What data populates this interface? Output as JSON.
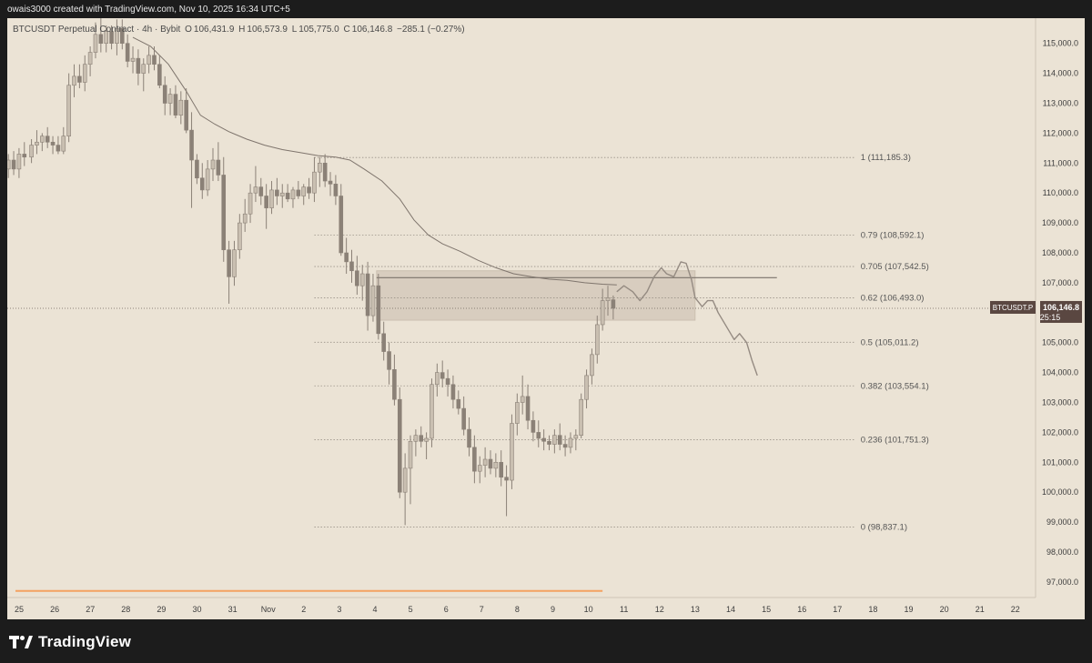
{
  "header": {
    "attribution": "owais3000 created with TradingView.com, Nov 10, 2025 16:34 UTC+5"
  },
  "symbol": {
    "name": "BTCUSDT Perpetual Contract · 4h · Bybit",
    "open_label": "O",
    "open": "106,431.9",
    "high_label": "H",
    "high": "106,573.9",
    "low_label": "L",
    "low": "105,775.0",
    "close_label": "C",
    "close": "106,146.8",
    "change": "−285.1 (−0.27%)"
  },
  "price_tag": {
    "symbol": "BTCUSDT.P",
    "price": "106,146.8",
    "countdown": "25:15",
    "bg_color": "#5a4741"
  },
  "footer": {
    "brand": "TradingView"
  },
  "colors": {
    "background": "#ebe3d5",
    "candle": "#8b8177",
    "candle_light": "#c9bfb1",
    "ma_line": "#7f756d",
    "fib_line": "#9a9288",
    "zone_fill": "#d8cdbf",
    "orange_line": "#f4a261"
  },
  "chart_data": {
    "type": "candlestick",
    "y_axis_ticks": [
      "115,000.0",
      "114,000.0",
      "113,000.0",
      "112,000.0",
      "111,000.0",
      "110,000.0",
      "109,000.0",
      "108,000.0",
      "107,000.0",
      "106,000.0",
      "105,000.0",
      "104,000.0",
      "103,000.0",
      "102,000.0",
      "101,000.0",
      "100,000.0",
      "99,000.0",
      "98,000.0",
      "97,000.0"
    ],
    "y_axis_values": [
      115000,
      114000,
      113000,
      112000,
      111000,
      110000,
      109000,
      108000,
      107000,
      106000,
      105000,
      104000,
      103000,
      102000,
      101000,
      100000,
      99000,
      98000,
      97000
    ],
    "x_axis_labels": [
      "25",
      "26",
      "27",
      "28",
      "29",
      "30",
      "31",
      "Nov",
      "2",
      "3",
      "4",
      "5",
      "6",
      "7",
      "8",
      "9",
      "10",
      "11",
      "12",
      "13",
      "14",
      "15",
      "16",
      "17",
      "18",
      "19",
      "20",
      "21",
      "22"
    ],
    "x_axis_day_index": [
      0,
      1,
      2,
      3,
      4,
      5,
      6,
      7,
      8,
      9,
      10,
      11,
      12,
      13,
      14,
      15,
      16,
      17,
      18,
      19,
      20,
      21,
      22,
      23,
      24,
      25,
      26,
      27,
      28
    ],
    "fib_levels": [
      {
        "ratio": "1",
        "value": 111185.3,
        "label": "1 (111,185.3)"
      },
      {
        "ratio": "0.79",
        "value": 108592.1,
        "label": "0.79 (108,592.1)"
      },
      {
        "ratio": "0.705",
        "value": 107542.5,
        "label": "0.705 (107,542.5)"
      },
      {
        "ratio": "0.62",
        "value": 106493.0,
        "label": "0.62 (106,493.0)"
      },
      {
        "ratio": "0.5",
        "value": 105011.2,
        "label": "0.5 (105,011.2)"
      },
      {
        "ratio": "0.382",
        "value": 103554.1,
        "label": "0.382 (103,554.1)"
      },
      {
        "ratio": "0.236",
        "value": 101751.3,
        "label": "0.236 (101,751.3)"
      },
      {
        "ratio": "0",
        "value": 98837.1,
        "label": "0 (98,837.1)"
      }
    ],
    "fib_start_day": 8.4,
    "fib_end_day": 23.6,
    "zone": {
      "day_start": 10.15,
      "day_end": 19.1,
      "high": 107400,
      "low": 105750
    },
    "horizontal_line": {
      "day_start": 10.15,
      "day_end": 21.4,
      "value": 107170
    },
    "current_price": 106146.8,
    "candles": [
      {
        "d": -0.2,
        "o": 110800,
        "h": 111300,
        "l": 110500,
        "c": 111100
      },
      {
        "d": -0.05,
        "o": 111100,
        "h": 111400,
        "l": 110600,
        "c": 110800
      },
      {
        "d": 0.1,
        "o": 110800,
        "h": 111500,
        "l": 110500,
        "c": 111300
      },
      {
        "d": 0.25,
        "o": 111300,
        "h": 111700,
        "l": 110900,
        "c": 111200
      },
      {
        "d": 0.45,
        "o": 111200,
        "h": 111800,
        "l": 111000,
        "c": 111600
      },
      {
        "d": 0.6,
        "o": 111600,
        "h": 112100,
        "l": 111300,
        "c": 111700
      },
      {
        "d": 0.75,
        "o": 111700,
        "h": 112000,
        "l": 111400,
        "c": 111900
      },
      {
        "d": 0.9,
        "o": 111900,
        "h": 112200,
        "l": 111500,
        "c": 111700
      },
      {
        "d": 1.05,
        "o": 111700,
        "h": 111900,
        "l": 111300,
        "c": 111600
      },
      {
        "d": 1.2,
        "o": 111600,
        "h": 111900,
        "l": 111300,
        "c": 111400
      },
      {
        "d": 1.35,
        "o": 111400,
        "h": 112200,
        "l": 111300,
        "c": 111900
      },
      {
        "d": 1.5,
        "o": 111900,
        "h": 114000,
        "l": 111700,
        "c": 113600
      },
      {
        "d": 1.65,
        "o": 113600,
        "h": 114300,
        "l": 113200,
        "c": 113900
      },
      {
        "d": 1.8,
        "o": 113900,
        "h": 114300,
        "l": 113500,
        "c": 113700
      },
      {
        "d": 1.95,
        "o": 113700,
        "h": 114600,
        "l": 113400,
        "c": 114300
      },
      {
        "d": 2.1,
        "o": 114300,
        "h": 114900,
        "l": 113900,
        "c": 114700
      },
      {
        "d": 2.25,
        "o": 114700,
        "h": 115700,
        "l": 114500,
        "c": 115300
      },
      {
        "d": 2.4,
        "o": 115300,
        "h": 115900,
        "l": 114700,
        "c": 115000
      },
      {
        "d": 2.55,
        "o": 115000,
        "h": 115600,
        "l": 114700,
        "c": 115400
      },
      {
        "d": 2.7,
        "o": 115400,
        "h": 115600,
        "l": 114800,
        "c": 115000
      },
      {
        "d": 2.85,
        "o": 115000,
        "h": 115800,
        "l": 114600,
        "c": 115500
      },
      {
        "d": 3.0,
        "o": 115500,
        "h": 115800,
        "l": 114800,
        "c": 115000
      },
      {
        "d": 3.15,
        "o": 115000,
        "h": 115300,
        "l": 114200,
        "c": 114400
      },
      {
        "d": 3.3,
        "o": 114400,
        "h": 114900,
        "l": 114000,
        "c": 114500
      },
      {
        "d": 3.45,
        "o": 114500,
        "h": 114800,
        "l": 113600,
        "c": 114000
      },
      {
        "d": 3.6,
        "o": 114000,
        "h": 114500,
        "l": 113400,
        "c": 114300
      },
      {
        "d": 3.75,
        "o": 114300,
        "h": 114900,
        "l": 114000,
        "c": 114600
      },
      {
        "d": 3.9,
        "o": 114600,
        "h": 114900,
        "l": 114100,
        "c": 114300
      },
      {
        "d": 4.05,
        "o": 114300,
        "h": 114600,
        "l": 113500,
        "c": 113600
      },
      {
        "d": 4.2,
        "o": 113600,
        "h": 113900,
        "l": 112600,
        "c": 113000
      },
      {
        "d": 4.35,
        "o": 113000,
        "h": 113500,
        "l": 112600,
        "c": 113300
      },
      {
        "d": 4.5,
        "o": 113300,
        "h": 113600,
        "l": 112500,
        "c": 112600
      },
      {
        "d": 4.65,
        "o": 112600,
        "h": 113400,
        "l": 112300,
        "c": 113100
      },
      {
        "d": 4.8,
        "o": 113100,
        "h": 113500,
        "l": 112000,
        "c": 112100
      },
      {
        "d": 4.95,
        "o": 112100,
        "h": 112700,
        "l": 109500,
        "c": 111100
      },
      {
        "d": 5.1,
        "o": 111100,
        "h": 111300,
        "l": 110300,
        "c": 110500
      },
      {
        "d": 5.25,
        "o": 110500,
        "h": 111000,
        "l": 109800,
        "c": 110100
      },
      {
        "d": 5.4,
        "o": 110100,
        "h": 111100,
        "l": 109900,
        "c": 110800
      },
      {
        "d": 5.55,
        "o": 110800,
        "h": 111500,
        "l": 110400,
        "c": 111100
      },
      {
        "d": 5.7,
        "o": 111100,
        "h": 111700,
        "l": 110400,
        "c": 110600
      },
      {
        "d": 5.85,
        "o": 110600,
        "h": 111200,
        "l": 107700,
        "c": 108100
      },
      {
        "d": 6.0,
        "o": 108100,
        "h": 108400,
        "l": 106300,
        "c": 107200
      },
      {
        "d": 6.15,
        "o": 107200,
        "h": 108400,
        "l": 106900,
        "c": 108100
      },
      {
        "d": 6.3,
        "o": 108100,
        "h": 109300,
        "l": 107800,
        "c": 109000
      },
      {
        "d": 6.45,
        "o": 109000,
        "h": 109800,
        "l": 108700,
        "c": 109300
      },
      {
        "d": 6.6,
        "o": 109300,
        "h": 110300,
        "l": 109000,
        "c": 110000
      },
      {
        "d": 6.75,
        "o": 110000,
        "h": 110900,
        "l": 109700,
        "c": 110200
      },
      {
        "d": 6.9,
        "o": 110200,
        "h": 110500,
        "l": 109600,
        "c": 109900
      },
      {
        "d": 7.05,
        "o": 109900,
        "h": 110300,
        "l": 108800,
        "c": 109500
      },
      {
        "d": 7.2,
        "o": 109500,
        "h": 110400,
        "l": 109300,
        "c": 110100
      },
      {
        "d": 7.35,
        "o": 110100,
        "h": 110500,
        "l": 109600,
        "c": 109900
      },
      {
        "d": 7.5,
        "o": 109900,
        "h": 110300,
        "l": 109500,
        "c": 110000
      },
      {
        "d": 7.65,
        "o": 110000,
        "h": 110300,
        "l": 109700,
        "c": 109800
      },
      {
        "d": 7.8,
        "o": 109800,
        "h": 110200,
        "l": 109500,
        "c": 110100
      },
      {
        "d": 7.95,
        "o": 110100,
        "h": 110400,
        "l": 109800,
        "c": 109900
      },
      {
        "d": 8.1,
        "o": 109900,
        "h": 110300,
        "l": 109600,
        "c": 110200
      },
      {
        "d": 8.25,
        "o": 110200,
        "h": 110500,
        "l": 109800,
        "c": 110000
      },
      {
        "d": 8.4,
        "o": 110000,
        "h": 111200,
        "l": 109700,
        "c": 110700
      },
      {
        "d": 8.55,
        "o": 110700,
        "h": 111200,
        "l": 110200,
        "c": 111000
      },
      {
        "d": 8.7,
        "o": 111000,
        "h": 111300,
        "l": 110200,
        "c": 110400
      },
      {
        "d": 8.85,
        "o": 110400,
        "h": 110700,
        "l": 109900,
        "c": 110300
      },
      {
        "d": 9.0,
        "o": 110300,
        "h": 110600,
        "l": 109600,
        "c": 109900
      },
      {
        "d": 9.15,
        "o": 109900,
        "h": 110300,
        "l": 107900,
        "c": 108000
      },
      {
        "d": 9.3,
        "o": 108000,
        "h": 108500,
        "l": 107300,
        "c": 107700
      },
      {
        "d": 9.45,
        "o": 107700,
        "h": 108100,
        "l": 107000,
        "c": 107400
      },
      {
        "d": 9.6,
        "o": 107400,
        "h": 107900,
        "l": 106600,
        "c": 106900
      },
      {
        "d": 9.75,
        "o": 106900,
        "h": 107600,
        "l": 106400,
        "c": 107300
      },
      {
        "d": 9.9,
        "o": 107300,
        "h": 107700,
        "l": 105400,
        "c": 105900
      },
      {
        "d": 10.05,
        "o": 105900,
        "h": 107300,
        "l": 105700,
        "c": 106900
      },
      {
        "d": 10.2,
        "o": 106900,
        "h": 107300,
        "l": 105100,
        "c": 105300
      },
      {
        "d": 10.35,
        "o": 105300,
        "h": 105700,
        "l": 104400,
        "c": 104700
      },
      {
        "d": 10.5,
        "o": 104700,
        "h": 105000,
        "l": 103600,
        "c": 104100
      },
      {
        "d": 10.65,
        "o": 104100,
        "h": 104600,
        "l": 102900,
        "c": 103100
      },
      {
        "d": 10.8,
        "o": 103100,
        "h": 103500,
        "l": 99800,
        "c": 100000
      },
      {
        "d": 10.95,
        "o": 100000,
        "h": 101300,
        "l": 98900,
        "c": 100800
      },
      {
        "d": 11.1,
        "o": 100800,
        "h": 101900,
        "l": 99600,
        "c": 101700
      },
      {
        "d": 11.25,
        "o": 101700,
        "h": 102100,
        "l": 101200,
        "c": 101900
      },
      {
        "d": 11.4,
        "o": 101900,
        "h": 102200,
        "l": 101500,
        "c": 101700
      },
      {
        "d": 11.55,
        "o": 101700,
        "h": 102000,
        "l": 101100,
        "c": 101800
      },
      {
        "d": 11.7,
        "o": 101800,
        "h": 103800,
        "l": 101500,
        "c": 103600
      },
      {
        "d": 11.85,
        "o": 103600,
        "h": 104300,
        "l": 103200,
        "c": 104000
      },
      {
        "d": 12.0,
        "o": 104000,
        "h": 104400,
        "l": 103500,
        "c": 103800
      },
      {
        "d": 12.15,
        "o": 103800,
        "h": 104100,
        "l": 103200,
        "c": 103600
      },
      {
        "d": 12.3,
        "o": 103600,
        "h": 103900,
        "l": 102800,
        "c": 103100
      },
      {
        "d": 12.45,
        "o": 103100,
        "h": 103400,
        "l": 102600,
        "c": 102800
      },
      {
        "d": 12.6,
        "o": 102800,
        "h": 103200,
        "l": 101900,
        "c": 102100
      },
      {
        "d": 12.75,
        "o": 102100,
        "h": 102500,
        "l": 101200,
        "c": 101500
      },
      {
        "d": 12.9,
        "o": 101500,
        "h": 101900,
        "l": 100300,
        "c": 100700
      },
      {
        "d": 13.05,
        "o": 100700,
        "h": 101200,
        "l": 100300,
        "c": 100900
      },
      {
        "d": 13.2,
        "o": 100900,
        "h": 101500,
        "l": 100500,
        "c": 101100
      },
      {
        "d": 13.35,
        "o": 101100,
        "h": 101400,
        "l": 100600,
        "c": 100800
      },
      {
        "d": 13.5,
        "o": 100800,
        "h": 101300,
        "l": 100500,
        "c": 101000
      },
      {
        "d": 13.65,
        "o": 101000,
        "h": 101400,
        "l": 100200,
        "c": 100500
      },
      {
        "d": 13.8,
        "o": 100500,
        "h": 100900,
        "l": 99200,
        "c": 100400
      },
      {
        "d": 13.95,
        "o": 100400,
        "h": 102600,
        "l": 100100,
        "c": 102300
      },
      {
        "d": 14.1,
        "o": 102300,
        "h": 103300,
        "l": 101900,
        "c": 103000
      },
      {
        "d": 14.25,
        "o": 103000,
        "h": 103900,
        "l": 102600,
        "c": 103200
      },
      {
        "d": 14.4,
        "o": 103200,
        "h": 103600,
        "l": 102100,
        "c": 102400
      },
      {
        "d": 14.55,
        "o": 102400,
        "h": 102700,
        "l": 101700,
        "c": 102000
      },
      {
        "d": 14.7,
        "o": 102000,
        "h": 102400,
        "l": 101500,
        "c": 101800
      },
      {
        "d": 14.85,
        "o": 101800,
        "h": 102100,
        "l": 101400,
        "c": 101700
      },
      {
        "d": 15.0,
        "o": 101700,
        "h": 101900,
        "l": 101400,
        "c": 101600
      },
      {
        "d": 15.15,
        "o": 101600,
        "h": 102100,
        "l": 101300,
        "c": 101900
      },
      {
        "d": 15.3,
        "o": 101900,
        "h": 102300,
        "l": 101400,
        "c": 101600
      },
      {
        "d": 15.45,
        "o": 101600,
        "h": 101900,
        "l": 101200,
        "c": 101500
      },
      {
        "d": 15.6,
        "o": 101500,
        "h": 102000,
        "l": 101300,
        "c": 101800
      },
      {
        "d": 15.75,
        "o": 101800,
        "h": 102100,
        "l": 101400,
        "c": 101900
      },
      {
        "d": 15.9,
        "o": 101900,
        "h": 103300,
        "l": 101800,
        "c": 103100
      },
      {
        "d": 16.05,
        "o": 103100,
        "h": 104100,
        "l": 102800,
        "c": 103900
      },
      {
        "d": 16.2,
        "o": 103900,
        "h": 104800,
        "l": 103600,
        "c": 104600
      },
      {
        "d": 16.35,
        "o": 104600,
        "h": 105900,
        "l": 104300,
        "c": 105600
      },
      {
        "d": 16.5,
        "o": 105600,
        "h": 106800,
        "l": 105400,
        "c": 106400
      },
      {
        "d": 16.65,
        "o": 106400,
        "h": 106900,
        "l": 105900,
        "c": 106500
      },
      {
        "d": 16.8,
        "o": 106431.9,
        "h": 106573.9,
        "l": 105775.0,
        "c": 106146.8
      }
    ],
    "moving_average": [
      [
        3.3,
        115200
      ],
      [
        3.8,
        114900
      ],
      [
        4.3,
        114300
      ],
      [
        4.8,
        113400
      ],
      [
        5.2,
        112600
      ],
      [
        5.6,
        112300
      ],
      [
        6.0,
        112050
      ],
      [
        6.5,
        111800
      ],
      [
        7.0,
        111600
      ],
      [
        7.5,
        111450
      ],
      [
        8.0,
        111350
      ],
      [
        8.5,
        111250
      ],
      [
        9.0,
        111200
      ],
      [
        9.4,
        111100
      ],
      [
        9.8,
        110800
      ],
      [
        10.3,
        110400
      ],
      [
        10.8,
        109800
      ],
      [
        11.2,
        109100
      ],
      [
        11.6,
        108600
      ],
      [
        12.0,
        108300
      ],
      [
        12.5,
        108050
      ],
      [
        13.0,
        107750
      ],
      [
        13.5,
        107500
      ],
      [
        14.0,
        107300
      ],
      [
        14.5,
        107200
      ],
      [
        15.0,
        107120
      ],
      [
        15.5,
        107080
      ],
      [
        16.0,
        107000
      ],
      [
        16.5,
        106950
      ],
      [
        16.9,
        106930
      ]
    ],
    "projection": [
      [
        16.9,
        106700
      ],
      [
        17.1,
        106900
      ],
      [
        17.35,
        106700
      ],
      [
        17.55,
        106400
      ],
      [
        17.75,
        106700
      ],
      [
        17.95,
        107200
      ],
      [
        18.15,
        107500
      ],
      [
        18.3,
        107300
      ],
      [
        18.5,
        107200
      ],
      [
        18.7,
        107700
      ],
      [
        18.85,
        107650
      ],
      [
        19.0,
        107100
      ],
      [
        19.1,
        106500
      ],
      [
        19.3,
        106200
      ],
      [
        19.45,
        106400
      ],
      [
        19.6,
        106400
      ],
      [
        19.75,
        106000
      ],
      [
        19.9,
        105700
      ],
      [
        20.1,
        105300
      ],
      [
        20.2,
        105100
      ],
      [
        20.35,
        105300
      ],
      [
        20.55,
        105000
      ],
      [
        20.7,
        104400
      ],
      [
        20.85,
        103900
      ]
    ],
    "orange_line": {
      "day_start": 0,
      "day_end": 16.5,
      "value": 96700
    }
  }
}
